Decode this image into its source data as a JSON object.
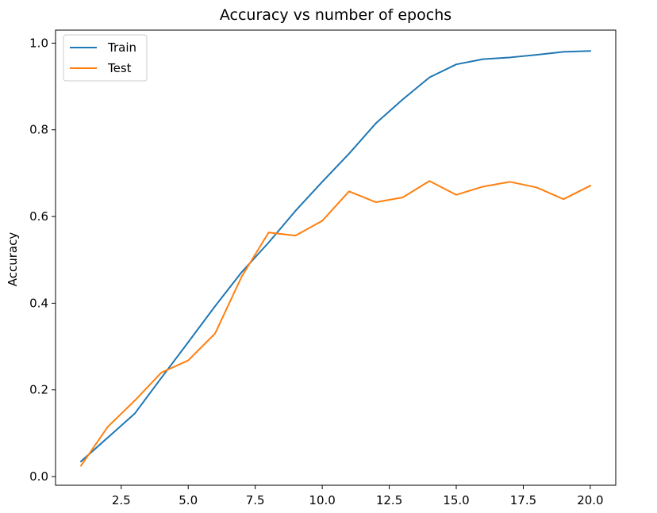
{
  "chart_data": {
    "type": "line",
    "title": "Accuracy vs number of epochs",
    "xlabel": "",
    "ylabel": "Accuracy",
    "xlim": [
      0.05,
      20.95
    ],
    "ylim": [
      -0.02,
      1.03
    ],
    "x_ticks": [
      2.5,
      5.0,
      7.5,
      10.0,
      12.5,
      15.0,
      17.5,
      20.0
    ],
    "x_tick_labels": [
      "2.5",
      "5.0",
      "7.5",
      "10.0",
      "12.5",
      "15.0",
      "17.5",
      "20.0"
    ],
    "y_ticks": [
      0.0,
      0.2,
      0.4,
      0.6,
      0.8,
      1.0
    ],
    "y_tick_labels": [
      "0.0",
      "0.2",
      "0.4",
      "0.6",
      "0.8",
      "1.0"
    ],
    "grid": false,
    "legend_position": "top-left",
    "x": [
      1,
      2,
      3,
      4,
      5,
      6,
      7,
      8,
      9,
      10,
      11,
      12,
      13,
      14,
      15,
      16,
      17,
      18,
      19,
      20
    ],
    "series": [
      {
        "name": "Train",
        "color": "#1f77b4",
        "values": [
          0.035,
          0.09,
          0.145,
          0.228,
          0.31,
          0.393,
          0.472,
          0.54,
          0.613,
          0.68,
          0.745,
          0.815,
          0.87,
          0.921,
          0.951,
          0.963,
          0.967,
          0.973,
          0.98,
          0.982
        ]
      },
      {
        "name": "Test",
        "color": "#ff7f0e",
        "values": [
          0.025,
          0.115,
          0.175,
          0.24,
          0.268,
          0.33,
          0.462,
          0.563,
          0.556,
          0.59,
          0.658,
          0.633,
          0.644,
          0.682,
          0.65,
          0.669,
          0.68,
          0.667,
          0.64,
          0.671
        ]
      }
    ]
  }
}
